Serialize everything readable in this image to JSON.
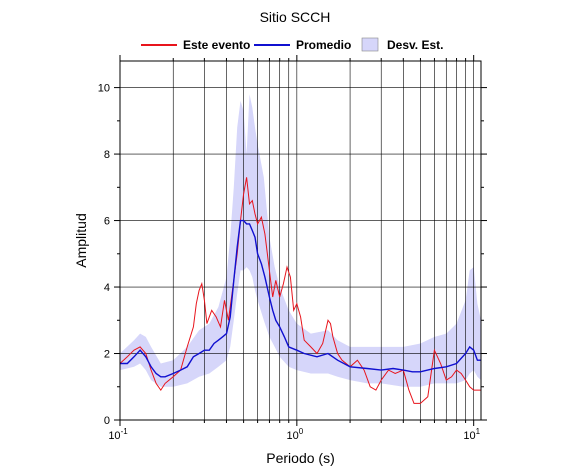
{
  "chart_data": {
    "type": "line",
    "title": "Sitio SCCH",
    "xlabel": "Periodo (s)",
    "ylabel": "Amplitud",
    "x_scale": "log",
    "xlim": [
      0.1,
      11
    ],
    "ylim": [
      0,
      10.8
    ],
    "grid": true,
    "legend_position": "top",
    "x_ticks": [
      {
        "value": 0.1,
        "base": "10",
        "exp": "-1"
      },
      {
        "value": 1,
        "base": "10",
        "exp": "0"
      },
      {
        "value": 10,
        "base": "10",
        "exp": "1"
      }
    ],
    "y_ticks": [
      0,
      2,
      4,
      6,
      8,
      10
    ],
    "legend": [
      {
        "label": "Este evento",
        "kind": "line",
        "color": "#e8141c"
      },
      {
        "label": "Promedio",
        "kind": "line",
        "color": "#1010d0"
      },
      {
        "label": "Desv. Est.",
        "kind": "band",
        "color": "#d6d6fa"
      }
    ],
    "series": [
      {
        "name": "Este evento",
        "color": "#e8141c",
        "points": [
          [
            0.1,
            1.7
          ],
          [
            0.11,
            1.9
          ],
          [
            0.12,
            2.1
          ],
          [
            0.13,
            2.2
          ],
          [
            0.14,
            2.0
          ],
          [
            0.15,
            1.5
          ],
          [
            0.16,
            1.1
          ],
          [
            0.17,
            0.9
          ],
          [
            0.18,
            1.1
          ],
          [
            0.2,
            1.3
          ],
          [
            0.22,
            1.5
          ],
          [
            0.24,
            2.2
          ],
          [
            0.26,
            2.8
          ],
          [
            0.27,
            3.5
          ],
          [
            0.28,
            3.9
          ],
          [
            0.29,
            4.1
          ],
          [
            0.3,
            3.6
          ],
          [
            0.31,
            2.9
          ],
          [
            0.33,
            3.3
          ],
          [
            0.35,
            3.1
          ],
          [
            0.37,
            2.8
          ],
          [
            0.39,
            3.6
          ],
          [
            0.41,
            3.0
          ],
          [
            0.43,
            3.8
          ],
          [
            0.46,
            5.0
          ],
          [
            0.48,
            6.0
          ],
          [
            0.5,
            6.8
          ],
          [
            0.52,
            7.3
          ],
          [
            0.54,
            6.5
          ],
          [
            0.56,
            6.6
          ],
          [
            0.58,
            6.2
          ],
          [
            0.6,
            5.9
          ],
          [
            0.63,
            6.1
          ],
          [
            0.66,
            5.6
          ],
          [
            0.7,
            4.5
          ],
          [
            0.73,
            3.7
          ],
          [
            0.76,
            4.2
          ],
          [
            0.8,
            3.7
          ],
          [
            0.84,
            4.1
          ],
          [
            0.88,
            4.6
          ],
          [
            0.92,
            4.3
          ],
          [
            0.96,
            3.3
          ],
          [
            1.0,
            3.5
          ],
          [
            1.05,
            3.1
          ],
          [
            1.1,
            2.4
          ],
          [
            1.2,
            2.2
          ],
          [
            1.3,
            2.0
          ],
          [
            1.4,
            2.3
          ],
          [
            1.5,
            3.0
          ],
          [
            1.55,
            2.9
          ],
          [
            1.6,
            2.5
          ],
          [
            1.7,
            2.0
          ],
          [
            1.8,
            1.8
          ],
          [
            2.0,
            1.6
          ],
          [
            2.2,
            1.8
          ],
          [
            2.4,
            1.5
          ],
          [
            2.6,
            1.0
          ],
          [
            2.8,
            0.9
          ],
          [
            3.0,
            1.2
          ],
          [
            3.3,
            1.5
          ],
          [
            3.6,
            1.4
          ],
          [
            4.0,
            1.5
          ],
          [
            4.3,
            0.9
          ],
          [
            4.6,
            0.5
          ],
          [
            5.0,
            0.5
          ],
          [
            5.5,
            0.7
          ],
          [
            6.0,
            2.1
          ],
          [
            6.5,
            1.7
          ],
          [
            7.0,
            1.2
          ],
          [
            7.5,
            1.3
          ],
          [
            8.0,
            1.5
          ],
          [
            8.5,
            1.4
          ],
          [
            9.0,
            1.2
          ],
          [
            9.5,
            1.0
          ],
          [
            10.0,
            0.9
          ],
          [
            11.0,
            0.9
          ]
        ]
      },
      {
        "name": "Promedio",
        "color": "#1010d0",
        "points": [
          [
            0.1,
            1.7
          ],
          [
            0.11,
            1.7
          ],
          [
            0.12,
            1.9
          ],
          [
            0.13,
            2.1
          ],
          [
            0.14,
            1.9
          ],
          [
            0.15,
            1.6
          ],
          [
            0.16,
            1.4
          ],
          [
            0.17,
            1.3
          ],
          [
            0.18,
            1.3
          ],
          [
            0.2,
            1.4
          ],
          [
            0.22,
            1.5
          ],
          [
            0.24,
            1.6
          ],
          [
            0.26,
            1.9
          ],
          [
            0.28,
            2.0
          ],
          [
            0.3,
            2.1
          ],
          [
            0.32,
            2.1
          ],
          [
            0.34,
            2.3
          ],
          [
            0.36,
            2.4
          ],
          [
            0.38,
            2.5
          ],
          [
            0.4,
            2.6
          ],
          [
            0.42,
            3.1
          ],
          [
            0.44,
            4.2
          ],
          [
            0.46,
            5.2
          ],
          [
            0.48,
            6.0
          ],
          [
            0.5,
            6.0
          ],
          [
            0.52,
            5.9
          ],
          [
            0.54,
            5.9
          ],
          [
            0.56,
            5.7
          ],
          [
            0.58,
            5.5
          ],
          [
            0.6,
            5.0
          ],
          [
            0.63,
            4.7
          ],
          [
            0.66,
            4.3
          ],
          [
            0.7,
            3.7
          ],
          [
            0.73,
            3.3
          ],
          [
            0.76,
            3.0
          ],
          [
            0.8,
            2.8
          ],
          [
            0.85,
            2.5
          ],
          [
            0.9,
            2.2
          ],
          [
            1.0,
            2.1
          ],
          [
            1.1,
            2.0
          ],
          [
            1.3,
            1.9
          ],
          [
            1.5,
            2.0
          ],
          [
            1.7,
            1.8
          ],
          [
            2.0,
            1.6
          ],
          [
            2.5,
            1.55
          ],
          [
            3.0,
            1.5
          ],
          [
            3.5,
            1.55
          ],
          [
            4.0,
            1.5
          ],
          [
            4.5,
            1.45
          ],
          [
            5.0,
            1.45
          ],
          [
            6.0,
            1.55
          ],
          [
            7.0,
            1.6
          ],
          [
            8.0,
            1.7
          ],
          [
            9.0,
            2.0
          ],
          [
            9.5,
            2.2
          ],
          [
            10.0,
            2.1
          ],
          [
            10.5,
            1.8
          ],
          [
            11.0,
            1.8
          ]
        ]
      }
    ],
    "band": {
      "name": "Desv. Est.",
      "color": "#d6d6fa",
      "points": [
        [
          0.1,
          1.5,
          2.0
        ],
        [
          0.12,
          1.6,
          2.4
        ],
        [
          0.13,
          1.7,
          2.6
        ],
        [
          0.14,
          1.5,
          2.5
        ],
        [
          0.15,
          1.2,
          2.2
        ],
        [
          0.17,
          1.0,
          1.7
        ],
        [
          0.2,
          1.0,
          1.8
        ],
        [
          0.24,
          1.1,
          2.2
        ],
        [
          0.28,
          1.3,
          2.7
        ],
        [
          0.32,
          1.4,
          2.9
        ],
        [
          0.36,
          1.6,
          3.4
        ],
        [
          0.4,
          1.8,
          4.3
        ],
        [
          0.42,
          2.2,
          5.5
        ],
        [
          0.44,
          3.0,
          7.0
        ],
        [
          0.46,
          3.8,
          8.8
        ],
        [
          0.48,
          4.5,
          9.6
        ],
        [
          0.5,
          4.5,
          9.3
        ],
        [
          0.52,
          4.6,
          8.0
        ],
        [
          0.54,
          4.5,
          9.8
        ],
        [
          0.56,
          4.3,
          9.4
        ],
        [
          0.58,
          3.9,
          8.8
        ],
        [
          0.6,
          3.6,
          8.3
        ],
        [
          0.65,
          3.0,
          7.3
        ],
        [
          0.7,
          2.5,
          5.5
        ],
        [
          0.75,
          2.2,
          4.6
        ],
        [
          0.8,
          1.9,
          4.0
        ],
        [
          0.9,
          1.6,
          3.3
        ],
        [
          1.0,
          1.5,
          2.9
        ],
        [
          1.2,
          1.4,
          2.6
        ],
        [
          1.5,
          1.4,
          2.7
        ],
        [
          1.7,
          1.3,
          2.4
        ],
        [
          2.0,
          1.2,
          2.2
        ],
        [
          2.5,
          1.1,
          2.2
        ],
        [
          3.0,
          1.1,
          2.2
        ],
        [
          4.0,
          1.0,
          2.2
        ],
        [
          5.0,
          1.0,
          2.3
        ],
        [
          6.0,
          1.1,
          2.5
        ],
        [
          7.0,
          1.1,
          2.6
        ],
        [
          8.0,
          1.1,
          2.9
        ],
        [
          9.0,
          1.2,
          3.6
        ],
        [
          9.5,
          1.4,
          4.5
        ],
        [
          10.0,
          1.5,
          4.6
        ],
        [
          10.5,
          1.3,
          3.5
        ],
        [
          11.0,
          1.2,
          3.0
        ]
      ]
    }
  }
}
